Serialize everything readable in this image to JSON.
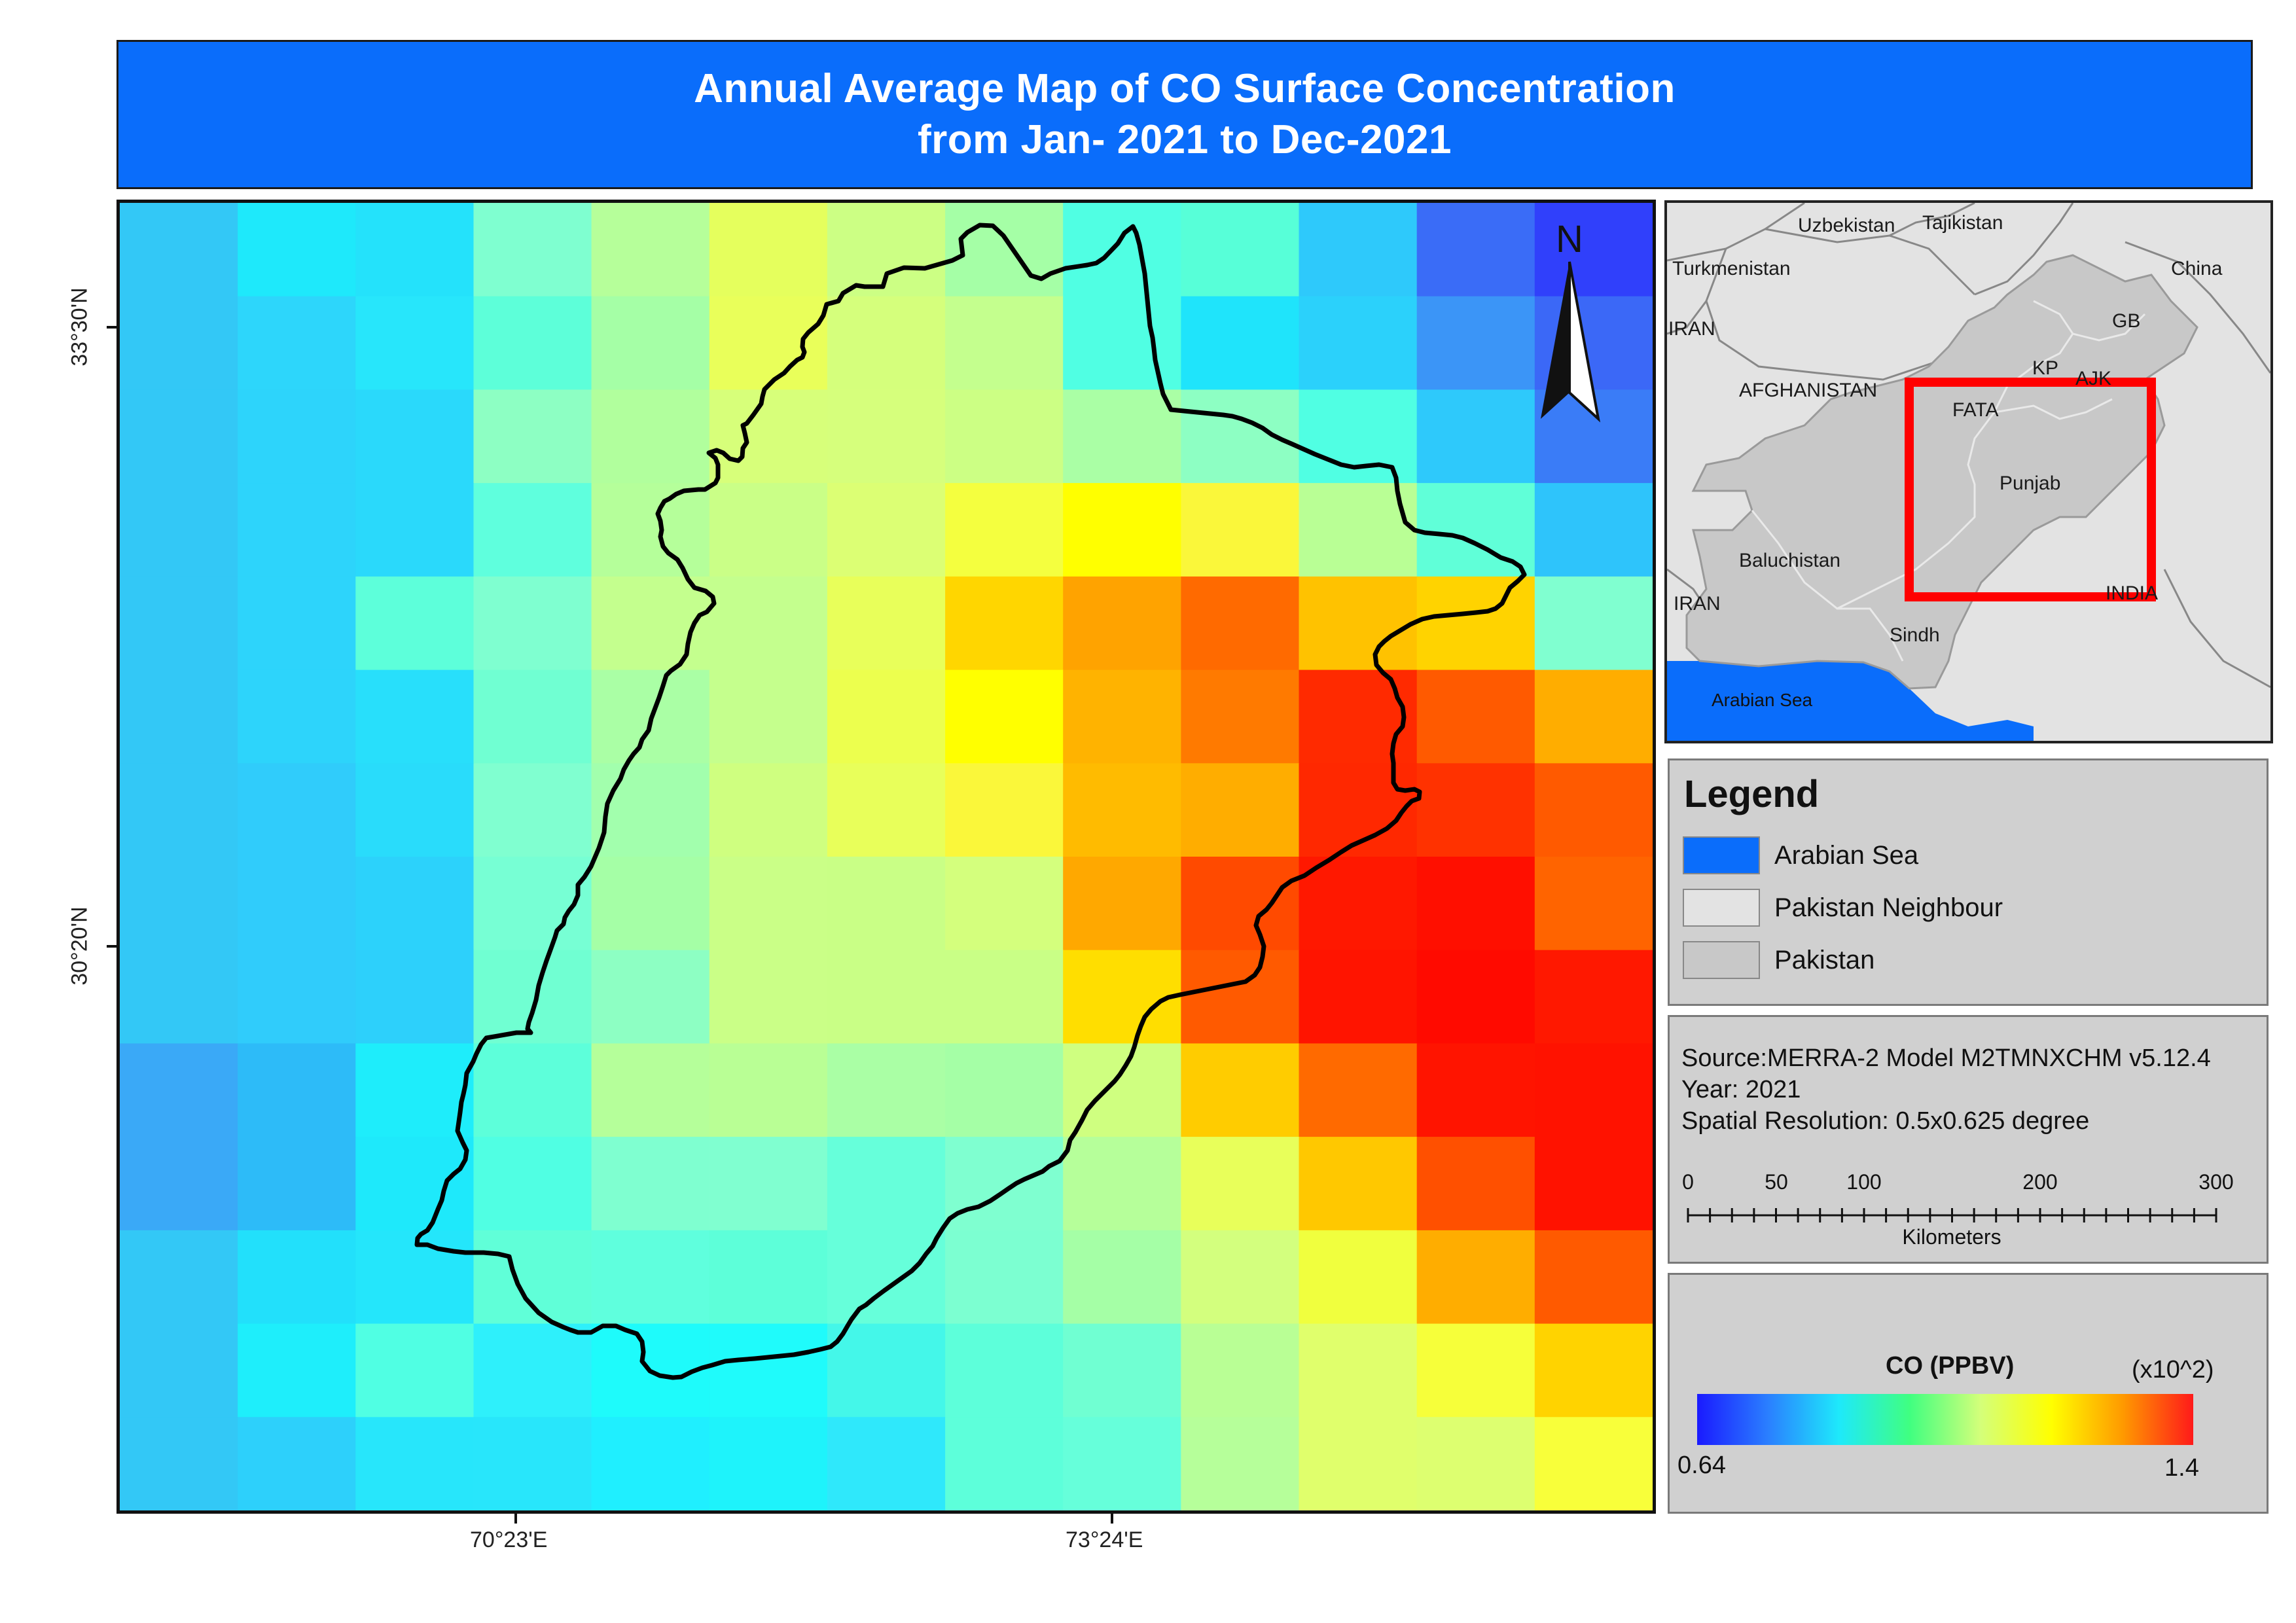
{
  "title": {
    "line1": "Annual Average Map of CO Surface Concentration",
    "line2": "from Jan- 2021 to Dec-2021"
  },
  "main_map": {
    "north_label": "N",
    "lat_labels": [
      "33°30'N",
      "30°20'N"
    ],
    "lon_labels": [
      "70°23'E",
      "73°24'E"
    ],
    "grid": {
      "cols": 13,
      "rows": 14,
      "colors": [
        [
          "#33c8f6",
          "#1ee9fb",
          "#24e2fb",
          "#7fffd0",
          "#b6ff9a",
          "#e5ff5d",
          "#ccff84",
          "#a5ffa6",
          "#50ffe3",
          "#57ffd8",
          "#2ec9fb",
          "#3a6cf7",
          "#3040fb"
        ],
        [
          "#33c8f6",
          "#2dd6fb",
          "#27e6fb",
          "#5dffd9",
          "#a5ffa6",
          "#e9ff5a",
          "#d5ff7c",
          "#c4ff8e",
          "#50ffe3",
          "#1fe4fb",
          "#2bd1fb",
          "#3b95f7",
          "#3b68f7"
        ],
        [
          "#33c8f6",
          "#2dd4fb",
          "#2ad9fb",
          "#8dffc3",
          "#b1ff9d",
          "#d7ff7a",
          "#d6ff7c",
          "#ccff84",
          "#aaffa5",
          "#8dffc3",
          "#50ffe3",
          "#2ec9fb",
          "#3a7cf7"
        ],
        [
          "#33c8f6",
          "#2dd4fb",
          "#2ad9fb",
          "#5fffdd",
          "#b5ff9a",
          "#caff87",
          "#dcff74",
          "#f4ff3f",
          "#ffff00",
          "#faf73a",
          "#b9ff95",
          "#60ffd8",
          "#2ec4fb"
        ],
        [
          "#33c8f6",
          "#2dd4fb",
          "#5dffda",
          "#7fffd0",
          "#c4ff8e",
          "#c4ff8e",
          "#e8ff5a",
          "#ffd600",
          "#ffa300",
          "#ff6a00",
          "#ffc200",
          "#ffd300",
          "#80ffd0"
        ],
        [
          "#33c8f6",
          "#2dd4fb",
          "#28dffb",
          "#70ffd2",
          "#aaffa5",
          "#c5ff8d",
          "#ecff4e",
          "#ffff00",
          "#ffb300",
          "#ff7a00",
          "#ff2a00",
          "#ff5a00",
          "#ffad00"
        ],
        [
          "#33c8f6",
          "#30ccfb",
          "#29dcfb",
          "#80ffd0",
          "#a2ffad",
          "#cfff80",
          "#e8ff5a",
          "#faf73a",
          "#ffbb00",
          "#ffad00",
          "#ff2800",
          "#ff3200",
          "#ff5a00"
        ],
        [
          "#33c8f6",
          "#30ccfb",
          "#2cd2fb",
          "#77ffd4",
          "#a5ffa6",
          "#caff87",
          "#c9ff86",
          "#d4ff7d",
          "#ffa800",
          "#ff4a00",
          "#ff1800",
          "#ff0f00",
          "#ff6400"
        ],
        [
          "#33c8f6",
          "#30ccfb",
          "#2dd0fb",
          "#70ffd2",
          "#8dffc3",
          "#caff87",
          "#c9ff86",
          "#c9ff86",
          "#ffde00",
          "#ff5a00",
          "#ff1400",
          "#ff0a00",
          "#ff1800"
        ],
        [
          "#3aa9f7",
          "#2dbbf8",
          "#1eedfb",
          "#5dffda",
          "#b5ff9a",
          "#b9ff95",
          "#aaffa5",
          "#a5ffa6",
          "#cfff80",
          "#ffcc00",
          "#ff6a00",
          "#ff1400",
          "#ff1200"
        ],
        [
          "#3aa9f7",
          "#2dbbf8",
          "#1ee9fb",
          "#50ffe3",
          "#7fffd0",
          "#80ffd0",
          "#66ffda",
          "#7fffd0",
          "#b6ff9a",
          "#e8ff5a",
          "#ffc800",
          "#ff5000",
          "#ff1200"
        ],
        [
          "#33c8f6",
          "#22e0fb",
          "#24e6fb",
          "#60ffd8",
          "#5fffdd",
          "#5dffd9",
          "#66ffda",
          "#7cffd1",
          "#a5ffa6",
          "#d3ff7e",
          "#f0ff3e",
          "#ffad00",
          "#ff5a00"
        ],
        [
          "#33c8f6",
          "#1eeefb",
          "#50ffe3",
          "#2ef0fb",
          "#1efbfb",
          "#1ffbfb",
          "#44f7e9",
          "#5dffda",
          "#70ffd2",
          "#b9ff95",
          "#e0ff6c",
          "#f6ff3a",
          "#ffd300"
        ],
        [
          "#33c8f6",
          "#2dd0fb",
          "#27e6fb",
          "#28e6fb",
          "#1fefff",
          "#1ef3fb",
          "#2fe8fb",
          "#5dffda",
          "#66ffda",
          "#b6ff9a",
          "#e0ff6c",
          "#ddff70",
          "#f8ff3a"
        ]
      ]
    }
  },
  "inset_map": {
    "labels": {
      "uzbekistan": "Uzbekistan",
      "tajikistan": "Tajikistan",
      "turkmenistan": "Turkmenistan",
      "china": "China",
      "iran_north": "IRAN",
      "gb": "GB",
      "afghanistan": "AFGHANISTAN",
      "kp": "KP",
      "ajk": "AJK",
      "fata": "FATA",
      "punjab": "Punjab",
      "baluchistan": "Baluchistan",
      "iran_south": "IRAN",
      "india": "INDIA",
      "sindh": "Sindh",
      "arabian_sea": "Arabian Sea"
    },
    "highlight_color": "#ff0000"
  },
  "legend": {
    "title": "Legend",
    "items": [
      {
        "label": "Arabian Sea",
        "color": "#0a6dfb"
      },
      {
        "label": "Pakistan Neighbour",
        "color": "#e3e3e3"
      },
      {
        "label": "Pakistan",
        "color": "#c8c8c8"
      }
    ]
  },
  "source_panel": {
    "source": "Source:MERRA-2 Model M2TMNXCHM v5.12.4",
    "year": "Year: 2021",
    "resolution": "Spatial Resolution: 0.5x0.625 degree",
    "scale_ticks": [
      "0",
      "50",
      "100",
      "200",
      "300"
    ],
    "scale_unit": "Kilometers"
  },
  "colorbar": {
    "title": "CO (PPBV)",
    "multiplier": "(x10^2)",
    "min": "0.64",
    "max": "1.4",
    "stops": [
      "#1a1aff",
      "#2a7fff",
      "#1ee9fb",
      "#40ff80",
      "#d4ff7a",
      "#ffff00",
      "#ff9a00",
      "#ff1a1a"
    ]
  }
}
